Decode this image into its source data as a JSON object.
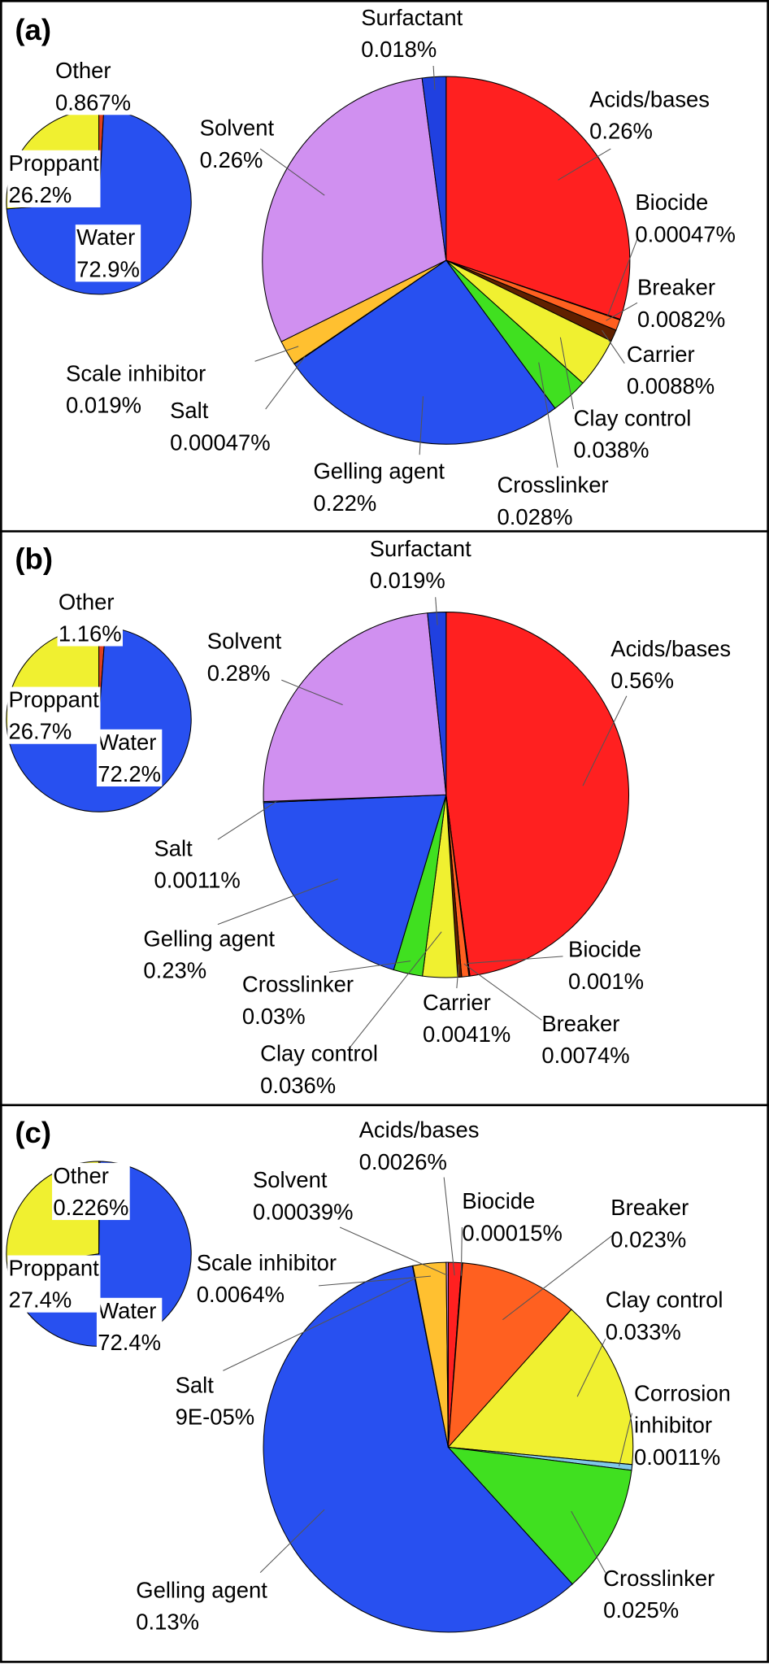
{
  "chart_data": [
    {
      "type": "pie",
      "title": "(a)",
      "categories": [
        "Acids/bases",
        "Biocide",
        "Breaker",
        "Carrier",
        "Clay control",
        "Crosslinker",
        "Gelling agent",
        "Salt",
        "Scale inhibitor",
        "Solvent",
        "Surfactant"
      ],
      "values": [
        0.26,
        0.00047,
        0.0082,
        0.0088,
        0.038,
        0.028,
        0.22,
        0.00047,
        0.019,
        0.26,
        0.018
      ],
      "value_labels": [
        "0.26%",
        "0.00047%",
        "0.0082%",
        "0.0088%",
        "0.038%",
        "0.028%",
        "0.22%",
        "0.00047%",
        "0.019%",
        "0.26%",
        "0.018%"
      ],
      "colors": [
        "#ff2020",
        "#a00000",
        "#ff6020",
        "#602000",
        "#f0f030",
        "#40e020",
        "#2850f0",
        "#80d0f0",
        "#ffc030",
        "#d090f0",
        "#2040e0"
      ],
      "inset": {
        "type": "pie",
        "categories": [
          "Other",
          "Water",
          "Proppant"
        ],
        "values": [
          0.867,
          72.9,
          26.2
        ],
        "value_labels": [
          "0.867%",
          "72.9%",
          "26.2%"
        ],
        "colors": [
          "#e04020",
          "#2850f0",
          "#f0f030"
        ]
      }
    },
    {
      "type": "pie",
      "title": "(b)",
      "categories": [
        "Acids/bases",
        "Biocide",
        "Breaker",
        "Carrier",
        "Clay control",
        "Crosslinker",
        "Gelling agent",
        "Salt",
        "Solvent",
        "Surfactant"
      ],
      "values": [
        0.56,
        0.001,
        0.0074,
        0.0041,
        0.036,
        0.03,
        0.23,
        0.0011,
        0.28,
        0.019
      ],
      "value_labels": [
        "0.56%",
        "0.001%",
        "0.0074%",
        "0.0041%",
        "0.036%",
        "0.03%",
        "0.23%",
        "0.0011%",
        "0.28%",
        "0.019%"
      ],
      "colors": [
        "#ff2020",
        "#a00000",
        "#ff6020",
        "#602000",
        "#f0f030",
        "#40e020",
        "#2850f0",
        "#80d0f0",
        "#d090f0",
        "#2040e0"
      ],
      "inset": {
        "type": "pie",
        "categories": [
          "Other",
          "Water",
          "Proppant"
        ],
        "values": [
          1.16,
          72.2,
          26.7
        ],
        "value_labels": [
          "1.16%",
          "72.2%",
          "26.7%"
        ],
        "colors": [
          "#e04020",
          "#2850f0",
          "#f0f030"
        ]
      }
    },
    {
      "type": "pie",
      "title": "(c)",
      "categories": [
        "Acids/bases",
        "Biocide",
        "Breaker",
        "Clay control",
        "Corrosion inhibitor",
        "Crosslinker",
        "Gelling agent",
        "Salt",
        "Scale inhibitor",
        "Solvent"
      ],
      "values": [
        0.0026,
        0.00015,
        0.023,
        0.033,
        0.0011,
        0.025,
        0.13,
        9e-05,
        0.0064,
        0.00039
      ],
      "value_labels": [
        "0.0026%",
        "0.00015%",
        "0.023%",
        "0.033%",
        "0.0011%",
        "0.025%",
        "0.13%",
        "9E-05%",
        "0.0064%",
        "0.00039%"
      ],
      "colors": [
        "#ff2020",
        "#a00000",
        "#ff6020",
        "#f0f030",
        "#80c8e8",
        "#40e020",
        "#2850f0",
        "#80d0f0",
        "#ffc030",
        "#d090f0"
      ],
      "inset": {
        "type": "pie",
        "categories": [
          "Other",
          "Water",
          "Proppant"
        ],
        "values": [
          0.226,
          72.4,
          27.4
        ],
        "value_labels": [
          "0.226%",
          "72.4%",
          "27.4%"
        ],
        "colors": [
          "#e04020",
          "#2850f0",
          "#f0f030"
        ]
      }
    }
  ]
}
